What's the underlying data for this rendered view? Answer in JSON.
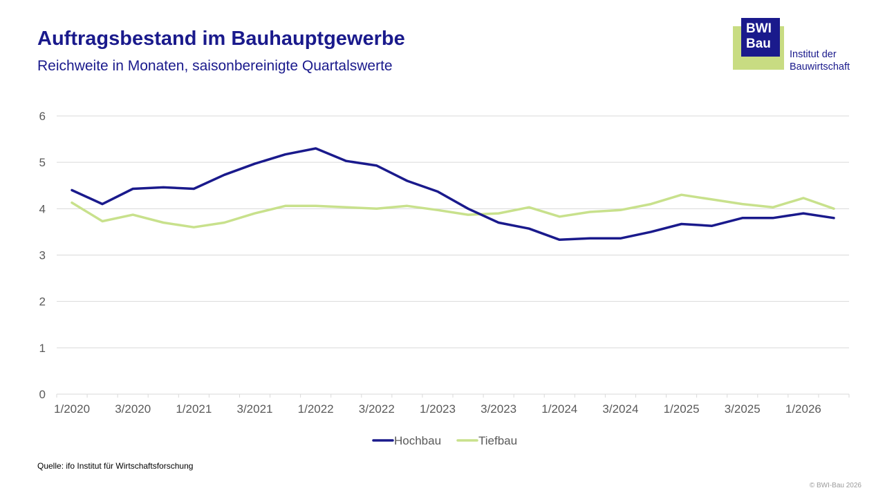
{
  "header": {
    "title": "Auftragsbestand im Bauhauptgewerbe",
    "subtitle": "Reichweite in Monaten, saisonbereinigte Quartalswerte"
  },
  "logo": {
    "line1": "BWI",
    "line2": "Bau",
    "text_line1": "Institut der",
    "text_line2": "Bauwirtschaft"
  },
  "footer": {
    "source": "Quelle: ifo Institut für Wirtschaftsforschung",
    "copyright": "© BWI-Bau 2026"
  },
  "colors": {
    "title": "#1a1a8c",
    "hochbau": "#1a1a8c",
    "tiefbau": "#c8e18c",
    "grid": "#d9d9d9",
    "axis_text": "#595959"
  },
  "chart_data": {
    "type": "line",
    "x": [
      "1/2020",
      "2/2020",
      "3/2020",
      "4/2020",
      "1/2021",
      "2/2021",
      "3/2021",
      "4/2021",
      "1/2022",
      "2/2022",
      "3/2022",
      "4/2022",
      "1/2023",
      "2/2023",
      "3/2023",
      "4/2023",
      "1/2024",
      "2/2024",
      "3/2024",
      "4/2024",
      "1/2025",
      "2/2025",
      "3/2025",
      "4/2025",
      "1/2026",
      "2/2026"
    ],
    "tick_labels": [
      "1/2020",
      "3/2020",
      "1/2021",
      "3/2021",
      "1/2022",
      "3/2022",
      "1/2023",
      "3/2023",
      "1/2024",
      "3/2024",
      "1/2025",
      "3/2025",
      "1/2026"
    ],
    "series": [
      {
        "name": "Hochbau",
        "values": [
          4.4,
          4.1,
          4.43,
          4.46,
          4.43,
          4.73,
          4.97,
          5.17,
          5.3,
          5.03,
          4.93,
          4.6,
          4.37,
          4.0,
          3.7,
          3.57,
          3.33,
          3.36,
          3.36,
          3.5,
          3.67,
          3.63,
          3.8,
          3.8,
          3.9,
          3.8
        ]
      },
      {
        "name": "Tiefbau",
        "values": [
          4.13,
          3.73,
          3.87,
          3.7,
          3.6,
          3.7,
          3.9,
          4.06,
          4.06,
          4.03,
          4.0,
          4.06,
          3.97,
          3.87,
          3.9,
          4.03,
          3.83,
          3.93,
          3.97,
          4.1,
          4.3,
          4.2,
          4.1,
          4.03,
          4.23,
          4.0
        ]
      }
    ],
    "ylim": [
      0,
      6
    ],
    "yticks": [
      0,
      1,
      2,
      3,
      4,
      5,
      6
    ],
    "grid": true,
    "legend_position": "bottom-center"
  }
}
